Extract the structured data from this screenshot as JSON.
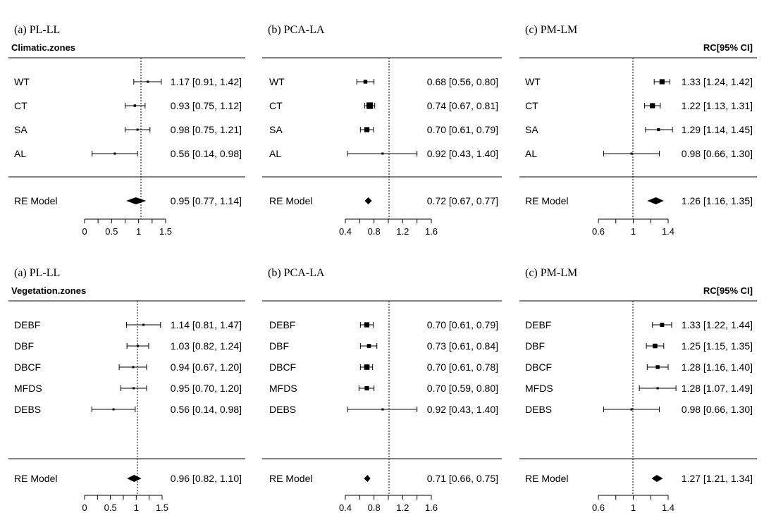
{
  "chart_data": [
    {
      "type": "forest",
      "title": "(a) PL-LL",
      "group_label": "Climatic.zones",
      "column_header": "",
      "ref_line": 1,
      "xlim": [
        0,
        1.5
      ],
      "xticks": [
        "0",
        "0.5",
        "1",
        "1.5"
      ],
      "rows": [
        {
          "label": "WT",
          "est": 1.17,
          "lo": 0.91,
          "hi": 1.42,
          "text": "1.17 [0.91, 1.42]"
        },
        {
          "label": "CT",
          "est": 0.93,
          "lo": 0.75,
          "hi": 1.12,
          "text": "0.93 [0.75, 1.12]"
        },
        {
          "label": "SA",
          "est": 0.98,
          "lo": 0.75,
          "hi": 1.21,
          "text": "0.98 [0.75, 1.21]"
        },
        {
          "label": "AL",
          "est": 0.56,
          "lo": 0.14,
          "hi": 0.98,
          "text": "0.56 [0.14, 0.98]"
        }
      ],
      "model": {
        "label": "RE Model",
        "est": 0.95,
        "lo": 0.77,
        "hi": 1.14,
        "text": "0.95 [0.77, 1.14]"
      }
    },
    {
      "type": "forest",
      "title": "(b) PCA-LA",
      "group_label": "",
      "column_header": "",
      "ref_line": 1,
      "xlim": [
        0.4,
        1.6
      ],
      "xticks": [
        "0.4",
        "0.8",
        "1.2",
        "1.6"
      ],
      "rows": [
        {
          "label": "WT",
          "est": 0.68,
          "lo": 0.56,
          "hi": 0.8,
          "text": "0.68 [0.56, 0.80]"
        },
        {
          "label": "CT",
          "est": 0.74,
          "lo": 0.67,
          "hi": 0.81,
          "text": "0.74 [0.67, 0.81]"
        },
        {
          "label": "SA",
          "est": 0.7,
          "lo": 0.61,
          "hi": 0.79,
          "text": "0.70 [0.61, 0.79]"
        },
        {
          "label": "AL",
          "est": 0.92,
          "lo": 0.43,
          "hi": 1.4,
          "text": "0.92 [0.43, 1.40]"
        }
      ],
      "model": {
        "label": "RE Model",
        "est": 0.72,
        "lo": 0.67,
        "hi": 0.77,
        "text": "0.72 [0.67, 0.77]"
      }
    },
    {
      "type": "forest",
      "title": "(c) PM-LM",
      "group_label": "",
      "column_header": "RC[95% CI]",
      "ref_line": 1,
      "xlim": [
        0.6,
        1.4
      ],
      "xticks": [
        "0.6",
        "1",
        "1.4"
      ],
      "rows": [
        {
          "label": "WT",
          "est": 1.33,
          "lo": 1.24,
          "hi": 1.42,
          "text": "1.33 [1.24, 1.42]"
        },
        {
          "label": "CT",
          "est": 1.22,
          "lo": 1.13,
          "hi": 1.31,
          "text": "1.22 [1.13, 1.31]"
        },
        {
          "label": "SA",
          "est": 1.29,
          "lo": 1.14,
          "hi": 1.45,
          "text": "1.29 [1.14, 1.45]"
        },
        {
          "label": "AL",
          "est": 0.98,
          "lo": 0.66,
          "hi": 1.3,
          "text": "0.98 [0.66, 1.30]"
        }
      ],
      "model": {
        "label": "RE Model",
        "est": 1.26,
        "lo": 1.16,
        "hi": 1.35,
        "text": "1.26 [1.16, 1.35]"
      }
    },
    {
      "type": "forest",
      "title": "(a) PL-LL",
      "group_label": "Vegetation.zones",
      "column_header": "",
      "ref_line": 1,
      "xlim": [
        0,
        1.5
      ],
      "xticks": [
        "0",
        "0.5",
        "1",
        "1.5"
      ],
      "rows": [
        {
          "label": "DEBF",
          "est": 1.14,
          "lo": 0.81,
          "hi": 1.47,
          "text": "1.14 [0.81, 1.47]"
        },
        {
          "label": "DBF",
          "est": 1.03,
          "lo": 0.82,
          "hi": 1.24,
          "text": "1.03 [0.82, 1.24]"
        },
        {
          "label": "DBCF",
          "est": 0.94,
          "lo": 0.67,
          "hi": 1.2,
          "text": "0.94 [0.67, 1.20]"
        },
        {
          "label": "MFDS",
          "est": 0.95,
          "lo": 0.7,
          "hi": 1.2,
          "text": "0.95 [0.70, 1.20]"
        },
        {
          "label": "DEBS",
          "est": 0.56,
          "lo": 0.14,
          "hi": 0.98,
          "text": "0.56 [0.14, 0.98]"
        }
      ],
      "model": {
        "label": "RE Model",
        "est": 0.96,
        "lo": 0.82,
        "hi": 1.1,
        "text": "0.96 [0.82, 1.10]"
      }
    },
    {
      "type": "forest",
      "title": "(b) PCA-LA",
      "group_label": "",
      "column_header": "",
      "ref_line": 1,
      "xlim": [
        0.4,
        1.6
      ],
      "xticks": [
        "0.4",
        "0.8",
        "1.2",
        "1.6"
      ],
      "rows": [
        {
          "label": "DEBF",
          "est": 0.7,
          "lo": 0.61,
          "hi": 0.79,
          "text": "0.70 [0.61, 0.79]"
        },
        {
          "label": "DBF",
          "est": 0.73,
          "lo": 0.61,
          "hi": 0.84,
          "text": "0.73 [0.61, 0.84]"
        },
        {
          "label": "DBCF",
          "est": 0.7,
          "lo": 0.61,
          "hi": 0.78,
          "text": "0.70 [0.61, 0.78]"
        },
        {
          "label": "MFDS",
          "est": 0.7,
          "lo": 0.59,
          "hi": 0.8,
          "text": "0.70 [0.59, 0.80]"
        },
        {
          "label": "DEBS",
          "est": 0.92,
          "lo": 0.43,
          "hi": 1.4,
          "text": "0.92 [0.43, 1.40]"
        }
      ],
      "model": {
        "label": "RE Model",
        "est": 0.71,
        "lo": 0.66,
        "hi": 0.75,
        "text": "0.71 [0.66, 0.75]"
      }
    },
    {
      "type": "forest",
      "title": "(c) PM-LM",
      "group_label": "",
      "column_header": "RC[95% CI]",
      "ref_line": 1,
      "xlim": [
        0.6,
        1.4
      ],
      "xticks": [
        "0.6",
        "1",
        "1.4"
      ],
      "rows": [
        {
          "label": "DEBF",
          "est": 1.33,
          "lo": 1.22,
          "hi": 1.44,
          "text": "1.33 [1.22, 1.44]"
        },
        {
          "label": "DBF",
          "est": 1.25,
          "lo": 1.15,
          "hi": 1.35,
          "text": "1.25 [1.15, 1.35]"
        },
        {
          "label": "DBCF",
          "est": 1.28,
          "lo": 1.16,
          "hi": 1.4,
          "text": "1.28 [1.16, 1.40]"
        },
        {
          "label": "MFDS",
          "est": 1.28,
          "lo": 1.07,
          "hi": 1.49,
          "text": "1.28 [1.07, 1.49]"
        },
        {
          "label": "DEBS",
          "est": 0.98,
          "lo": 0.66,
          "hi": 1.3,
          "text": "0.98 [0.66, 1.30]"
        }
      ],
      "model": {
        "label": "RE Model",
        "est": 1.27,
        "lo": 1.21,
        "hi": 1.34,
        "text": "1.27 [1.21, 1.34]"
      }
    }
  ]
}
